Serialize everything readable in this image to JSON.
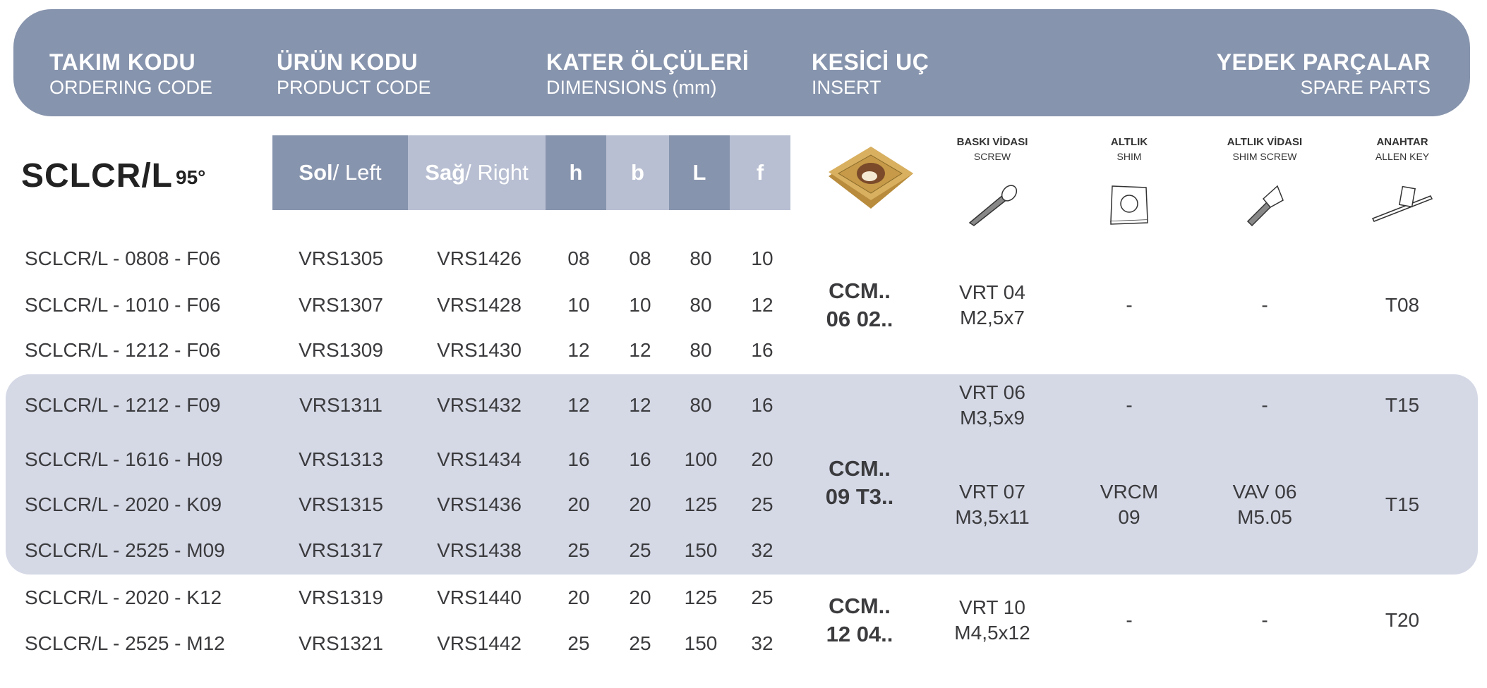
{
  "header": {
    "ordering_code": {
      "title": "TAKIM KODU",
      "subtitle": "ORDERING CODE"
    },
    "product_code": {
      "title": "ÜRÜN KODU",
      "subtitle": "PRODUCT CODE"
    },
    "dimensions": {
      "title": "KATER ÖLÇÜLERİ",
      "subtitle": "DIMENSIONS (mm)"
    },
    "insert": {
      "title": "KESİCİ UÇ",
      "subtitle": "INSERT"
    },
    "spare_parts": {
      "title": "YEDEK PARÇALAR",
      "subtitle": "SPARE PARTS"
    }
  },
  "family": {
    "name": "SCLCR/L",
    "angle": "95°"
  },
  "subheader": {
    "left_bold": "Sol",
    "left_rest": " / Left",
    "right_bold": "Sağ",
    "right_rest": " / Right",
    "h": "h",
    "b": "b",
    "L": "L",
    "f": "f"
  },
  "spare_parts_labels": [
    {
      "title": "BASKI VİDASI",
      "subtitle": "SCREW",
      "icon": "screw-icon"
    },
    {
      "title": "ALTLIK",
      "subtitle": "SHIM",
      "icon": "shim-icon"
    },
    {
      "title": "ALTLIK VİDASI",
      "subtitle": "SHIM SCREW",
      "icon": "shim-screw-icon"
    },
    {
      "title": "ANAHTAR",
      "subtitle": "ALLEN KEY",
      "icon": "allen-key-icon"
    }
  ],
  "rows": [
    {
      "code": "SCLCR/L - 0808 - F06",
      "left": "VRS1305",
      "right": "VRS1426",
      "h": "08",
      "b": "08",
      "L": "80",
      "f": "10"
    },
    {
      "code": "SCLCR/L - 1010 - F06",
      "left": "VRS1307",
      "right": "VRS1428",
      "h": "10",
      "b": "10",
      "L": "80",
      "f": "12"
    },
    {
      "code": "SCLCR/L - 1212 - F06",
      "left": "VRS1309",
      "right": "VRS1430",
      "h": "12",
      "b": "12",
      "L": "80",
      "f": "16"
    },
    {
      "code": "SCLCR/L - 1212 - F09",
      "left": "VRS1311",
      "right": "VRS1432",
      "h": "12",
      "b": "12",
      "L": "80",
      "f": "16"
    },
    {
      "code": "SCLCR/L - 1616 - H09",
      "left": "VRS1313",
      "right": "VRS1434",
      "h": "16",
      "b": "16",
      "L": "100",
      "f": "20"
    },
    {
      "code": "SCLCR/L - 2020 - K09",
      "left": "VRS1315",
      "right": "VRS1436",
      "h": "20",
      "b": "20",
      "L": "125",
      "f": "25"
    },
    {
      "code": "SCLCR/L - 2525 - M09",
      "left": "VRS1317",
      "right": "VRS1438",
      "h": "25",
      "b": "25",
      "L": "150",
      "f": "32"
    },
    {
      "code": "SCLCR/L - 2020 - K12",
      "left": "VRS1319",
      "right": "VRS1440",
      "h": "20",
      "b": "20",
      "L": "125",
      "f": "25"
    },
    {
      "code": "SCLCR/L - 2525 - M12",
      "left": "VRS1321",
      "right": "VRS1442",
      "h": "25",
      "b": "25",
      "L": "150",
      "f": "32"
    }
  ],
  "inserts": [
    {
      "line1": "CCM..",
      "line2": "06 02.."
    },
    {
      "line1": "CCM..",
      "line2": "09 T3.."
    },
    {
      "line1": "CCM..",
      "line2": "12 04.."
    }
  ],
  "spare_groups": [
    {
      "screw": [
        "VRT 04",
        "M2,5x7"
      ],
      "shim": [
        "-"
      ],
      "shim_screw": [
        "-"
      ],
      "key": [
        "T08"
      ]
    },
    {
      "screw": [
        "VRT 06",
        "M3,5x9"
      ],
      "shim": [
        "-"
      ],
      "shim_screw": [
        "-"
      ],
      "key": [
        "T15"
      ]
    },
    {
      "screw": [
        "VRT 07",
        "M3,5x11"
      ],
      "shim": [
        "VRCM",
        "09"
      ],
      "shim_screw": [
        "VAV 06",
        "M5.05"
      ],
      "key": [
        "T15"
      ]
    },
    {
      "screw": [
        "VRT 10",
        "M4,5x12"
      ],
      "shim": [
        "-"
      ],
      "shim_screw": [
        "-"
      ],
      "key": [
        "T20"
      ]
    }
  ],
  "colors": {
    "header": "#8794ad",
    "header_light": "#b8bfd2",
    "band": "#d5d9e6",
    "insert": "#c9a24a"
  }
}
